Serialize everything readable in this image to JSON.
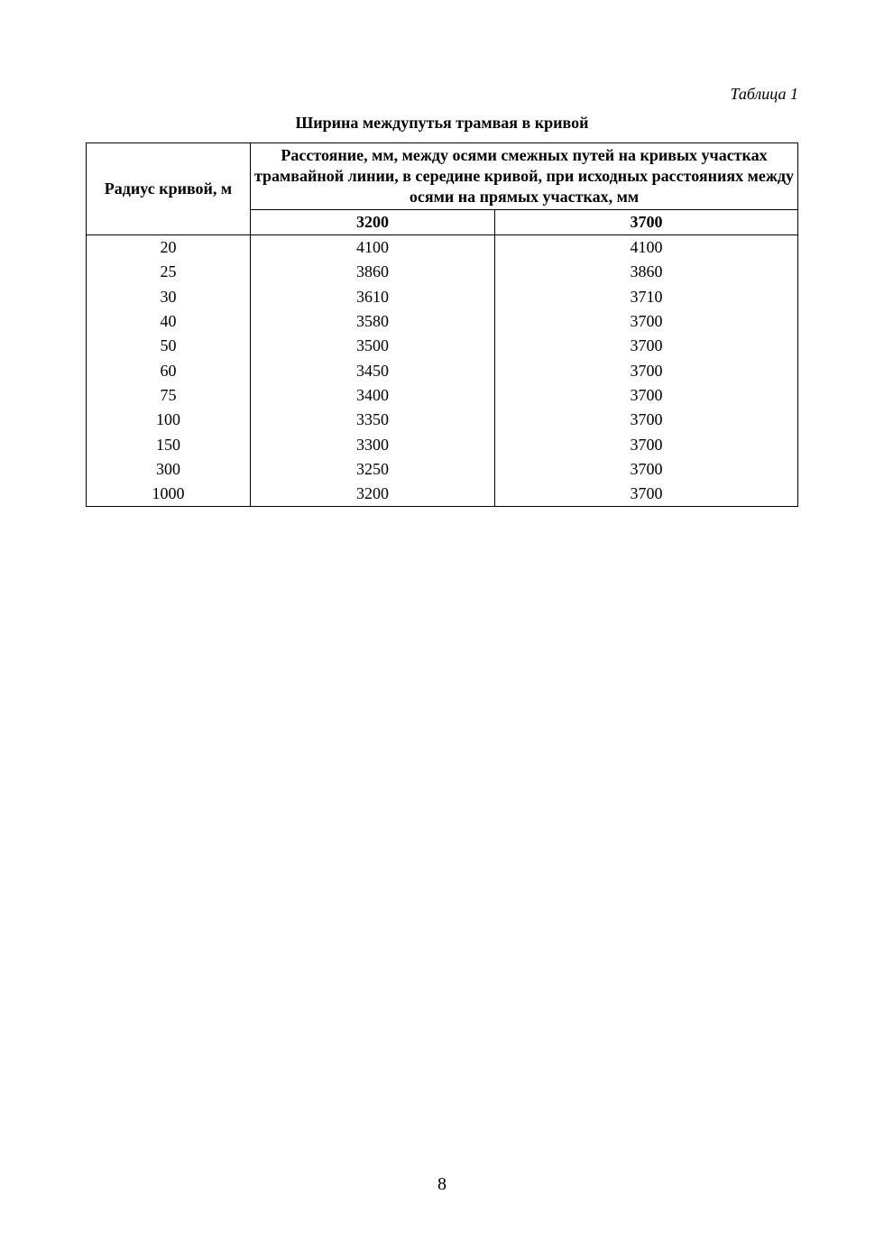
{
  "caption": "Таблица 1",
  "title": "Ширина междупутья трамвая в кривой",
  "table": {
    "header_radius": "Радиус кривой, м",
    "header_distance": "Расстояние, мм, между осями смежных путей на кривых участках трамвайной линии, в середине кривой, при исходных расстояниях между осями на прямых участках, мм",
    "sub_headers": [
      "3200",
      "3700"
    ],
    "rows": [
      [
        "20",
        "4100",
        "4100"
      ],
      [
        "25",
        "3860",
        "3860"
      ],
      [
        "30",
        "3610",
        "3710"
      ],
      [
        "40",
        "3580",
        "3700"
      ],
      [
        "50",
        "3500",
        "3700"
      ],
      [
        "60",
        "3450",
        "3700"
      ],
      [
        "75",
        "3400",
        "3700"
      ],
      [
        "100",
        "3350",
        "3700"
      ],
      [
        "150",
        "3300",
        "3700"
      ],
      [
        "300",
        "3250",
        "3700"
      ],
      [
        "1000",
        "3200",
        "3700"
      ]
    ]
  },
  "page_number": "8"
}
